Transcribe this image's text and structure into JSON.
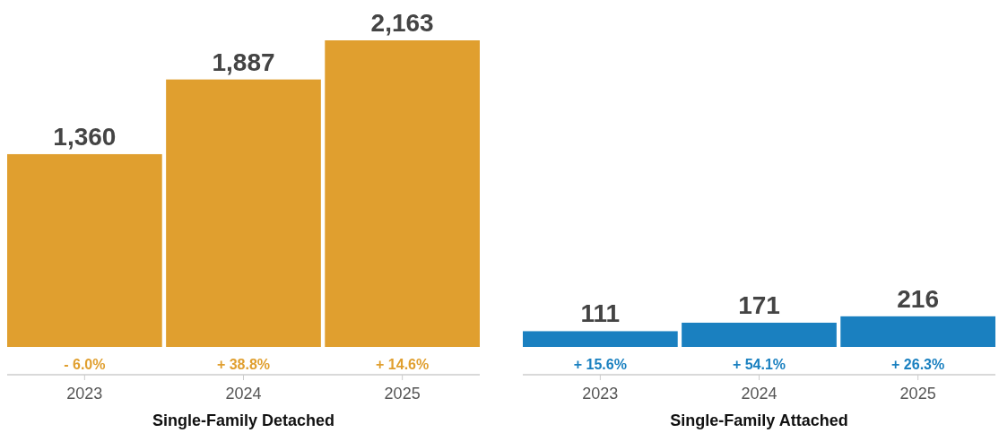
{
  "chart_data": [
    {
      "type": "bar",
      "xlabel": "Single-Family Detached",
      "categories": [
        "2023",
        "2024",
        "2025"
      ],
      "values": [
        1360,
        1887,
        2163
      ],
      "color": "#e09f2f",
      "value_labels": [
        "1,360",
        "1,887",
        "2,163"
      ],
      "annotations": [
        {
          "text": "- 6.0%",
          "x": "2023",
          "y": 0
        },
        {
          "text": "+ 38.8%",
          "x": "2024",
          "y": 0
        },
        {
          "text": "+ 14.6%",
          "x": "2025",
          "y": 0
        }
      ]
    },
    {
      "type": "bar",
      "xlabel": "Single-Family Attached",
      "categories": [
        "2023",
        "2024",
        "2025"
      ],
      "values": [
        111,
        171,
        216
      ],
      "color": "#1a80c0",
      "value_labels": [
        "111",
        "171",
        "216"
      ],
      "annotations": [
        {
          "text": "+ 15.6%",
          "x": "2023",
          "y": 0
        },
        {
          "text": "+ 54.1%",
          "x": "2024",
          "y": 0
        },
        {
          "text": "+ 26.3%",
          "x": "2025",
          "y": 0
        }
      ]
    }
  ]
}
